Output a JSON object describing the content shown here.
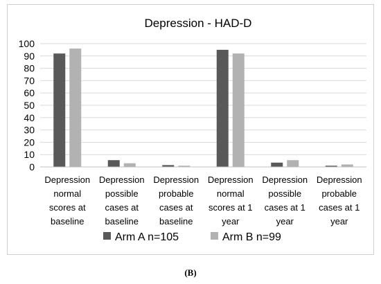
{
  "chart_data": {
    "type": "bar",
    "title": "Depression - HAD-D",
    "categories": [
      [
        "Depression",
        "normal",
        "scores at",
        "baseline"
      ],
      [
        "Depression",
        "possible",
        "cases at",
        "baseline"
      ],
      [
        "Depression",
        "probable",
        "cases at",
        "baseline"
      ],
      [
        "Depression",
        "normal",
        "scores at 1",
        "year"
      ],
      [
        "Depression",
        "possible",
        "cases at 1",
        "year"
      ],
      [
        "Depression",
        "probable",
        "cases at 1",
        "year"
      ]
    ],
    "series": [
      {
        "name": "Arm A n=105",
        "color": "#595959",
        "values": [
          92,
          5.5,
          1.5,
          95,
          3.5,
          1
        ]
      },
      {
        "name": "Arm B n=99",
        "color": "#b2b2b2",
        "values": [
          96,
          3,
          1,
          92,
          5.5,
          2
        ]
      }
    ],
    "ylim": [
      0,
      100
    ],
    "yticks": [
      0,
      10,
      20,
      30,
      40,
      50,
      60,
      70,
      80,
      90,
      100
    ],
    "grid": true,
    "legend_position": "bottom"
  },
  "caption": "(B)"
}
